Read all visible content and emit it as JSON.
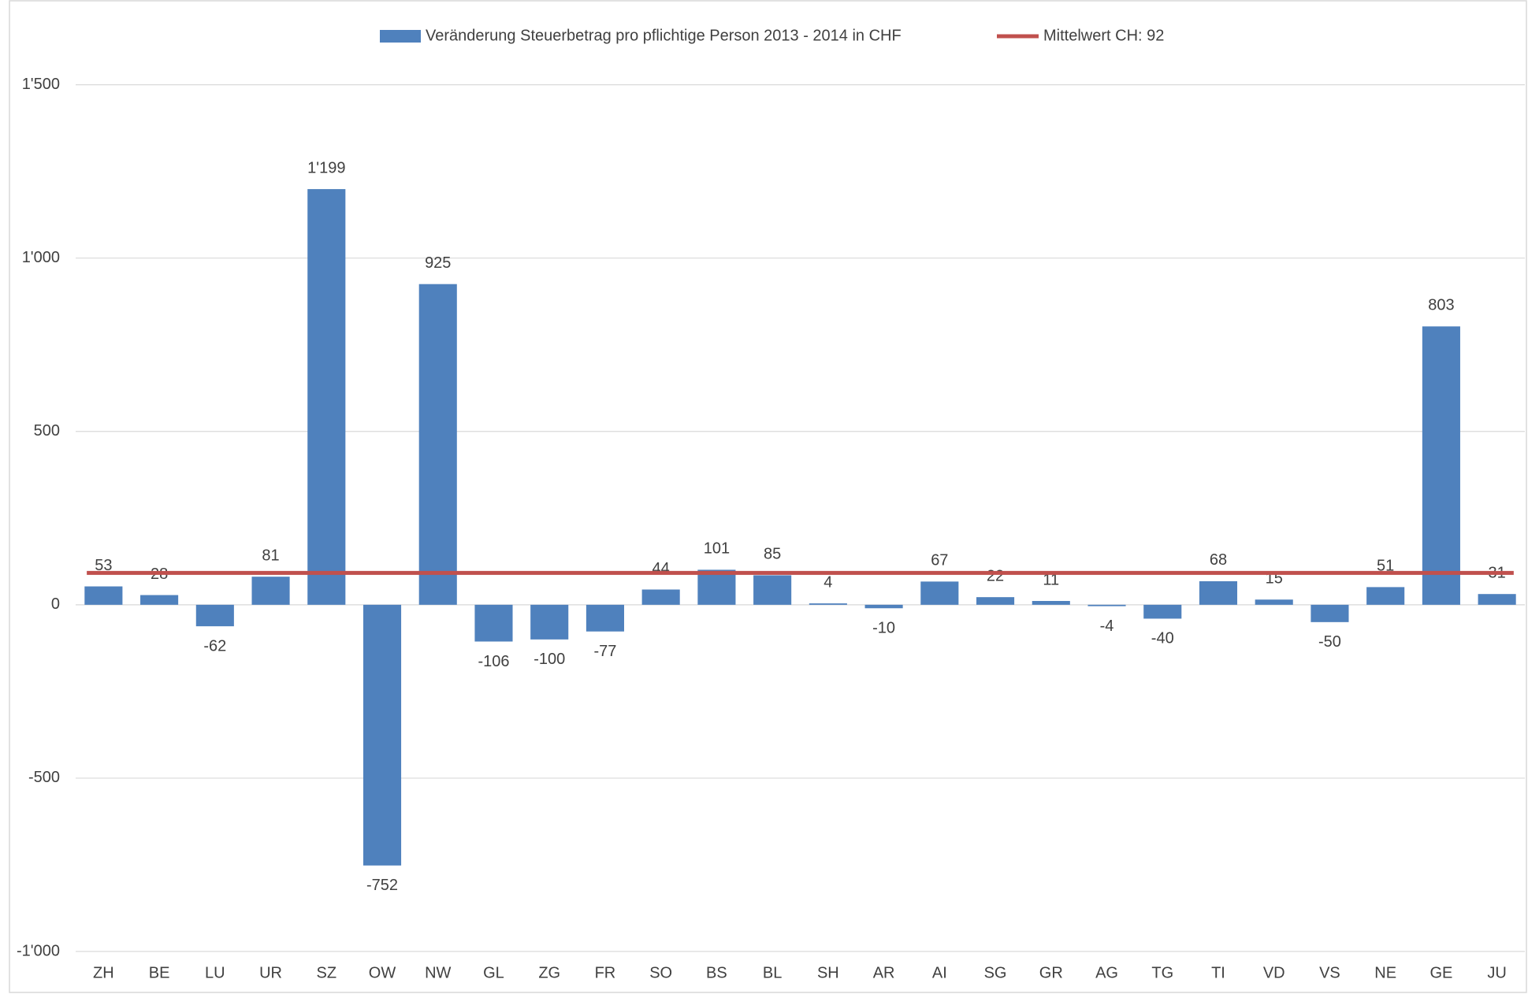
{
  "chart_data": {
    "type": "bar",
    "categories": [
      "ZH",
      "BE",
      "LU",
      "UR",
      "SZ",
      "OW",
      "NW",
      "GL",
      "ZG",
      "FR",
      "SO",
      "BS",
      "BL",
      "SH",
      "AR",
      "AI",
      "SG",
      "GR",
      "AG",
      "TG",
      "TI",
      "VD",
      "VS",
      "NE",
      "GE",
      "JU"
    ],
    "series": [
      {
        "name": "Veränderung Steuerbetrag pro pflichtige Person 2013 - 2014 in CHF",
        "color": "#4f81bd",
        "values": [
          53,
          28,
          -62,
          81,
          1199,
          -752,
          925,
          -106,
          -100,
          -77,
          44,
          101,
          85,
          4,
          -10,
          67,
          22,
          11,
          -4,
          -40,
          68,
          15,
          -50,
          51,
          803,
          31
        ],
        "value_labels": [
          "53",
          "28",
          "-62",
          "81",
          "1'199",
          "-752",
          "925",
          "-106",
          "-100",
          "-77",
          "44",
          "101",
          "85",
          "4",
          "-10",
          "67",
          "22",
          "11",
          "-4",
          "-40",
          "68",
          "15",
          "-50",
          "51",
          "803",
          "31"
        ]
      }
    ],
    "mean": {
      "name": "Mittelwert CH: 92",
      "value": 92,
      "color": "#c0504d"
    },
    "ylim": [
      -1000,
      1500
    ],
    "yticks": [
      {
        "value": -1000,
        "label": "-1'000"
      },
      -500,
      0,
      500,
      {
        "value": 1000,
        "label": "1'000"
      },
      {
        "value": 1500,
        "label": "1'500"
      }
    ],
    "grid": true,
    "legend": "top"
  }
}
